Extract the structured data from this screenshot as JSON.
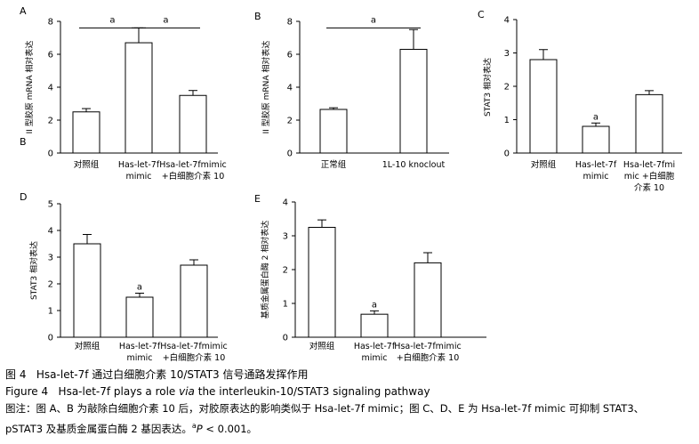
{
  "chart_data": [
    {
      "type": "bar",
      "panel": "A",
      "ylabel": "II 型胶原 mRNA 相对表达",
      "ylim": [
        0,
        8
      ],
      "yticks": [
        0,
        2,
        4,
        6,
        8
      ],
      "categories": [
        [
          "对照组"
        ],
        [
          "Has-let-7f",
          "mimic"
        ],
        [
          "Hsa-let-7fmimic",
          "+白细胞介素 10"
        ]
      ],
      "values": [
        2.5,
        6.7,
        3.5
      ],
      "errors": [
        0.2,
        0.9,
        0.3
      ],
      "bar_marks": [
        "",
        "",
        ""
      ],
      "brackets": [
        {
          "from": 0,
          "to": 1,
          "label": "a",
          "y": 7.6
        },
        {
          "from": 1,
          "to": 2,
          "label": "a",
          "y": 7.6
        }
      ]
    },
    {
      "type": "bar",
      "panel": "B",
      "ylabel": "II 型胶原 mRNA 相对表达",
      "ylim": [
        0,
        8
      ],
      "yticks": [
        0,
        2,
        4,
        6,
        8
      ],
      "categories": [
        [
          "正常组"
        ],
        [
          "1L-10 knoclout"
        ]
      ],
      "values": [
        2.65,
        6.3
      ],
      "errors": [
        0.1,
        1.2
      ],
      "bar_marks": [
        "",
        ""
      ],
      "brackets": [
        {
          "from": 0,
          "to": 1,
          "label": "a",
          "y": 7.6
        }
      ]
    },
    {
      "type": "bar",
      "panel": "C",
      "ylabel": "STAT3 相对表达",
      "ylim": [
        0,
        4
      ],
      "yticks": [
        0,
        1,
        2,
        3,
        4
      ],
      "categories": [
        [
          "对照组"
        ],
        [
          "Has-let-7f",
          "mimic"
        ],
        [
          "Hsa-let-7fmi",
          "mic +白细胞",
          "介素 10"
        ]
      ],
      "values": [
        2.8,
        0.8,
        1.75
      ],
      "errors": [
        0.3,
        0.1,
        0.12
      ],
      "bar_marks": [
        "",
        "a",
        ""
      ],
      "brackets": []
    },
    {
      "type": "bar",
      "panel": "D",
      "ylabel": "STAT3 相对表达",
      "ylim": [
        0,
        5
      ],
      "yticks": [
        0,
        1,
        2,
        3,
        4,
        5
      ],
      "categories": [
        [
          "对照组"
        ],
        [
          "Has-let-7f",
          "mimic"
        ],
        [
          "Hsa-let-7fmimic",
          "+白细胞介素 10"
        ]
      ],
      "values": [
        3.5,
        1.5,
        2.7
      ],
      "errors": [
        0.35,
        0.15,
        0.2
      ],
      "bar_marks": [
        "",
        "a",
        ""
      ],
      "brackets": []
    },
    {
      "type": "bar",
      "panel": "E",
      "ylabel": "基质金属蛋白酶 2 相对表达",
      "ylim": [
        0,
        4
      ],
      "yticks": [
        0,
        1,
        2,
        3,
        4
      ],
      "categories": [
        [
          "对照组"
        ],
        [
          "Has-let-7f",
          "mimic"
        ],
        [
          "Hsa-let-7fmimic",
          "+白细胞介素 10"
        ]
      ],
      "values": [
        3.25,
        0.68,
        2.2
      ],
      "errors": [
        0.22,
        0.1,
        0.3
      ],
      "bar_marks": [
        "",
        "a",
        ""
      ],
      "brackets": []
    }
  ],
  "stray_labels": {
    "b_under_a": "B"
  },
  "caption": {
    "zh_title_label": "图 4",
    "zh_title": "Hsa-let-7f 通过白细胞介素 10/STAT3 信号通路发挥作用",
    "en_title_label": "Figure 4",
    "en_title_pre": "Hsa-let-7f plays a role ",
    "en_title_italic": "via",
    "en_title_post": " the interleukin-10/STAT3 signaling pathway",
    "note_line1_pre": "图注：图 A、B 为敲除白细胞介素 10 后，对胶原表达的影响类似于 Hsa-let-7f mimic；图 C、D、E 为 Hsa-let-7f mimic 可抑制 STAT3、",
    "note_line2_pre": "pSTAT3 及基质金属蛋白酶 2 基因表达。",
    "note_sup": "a",
    "note_p": "P",
    "note_line2_post": " < 0.001。"
  }
}
